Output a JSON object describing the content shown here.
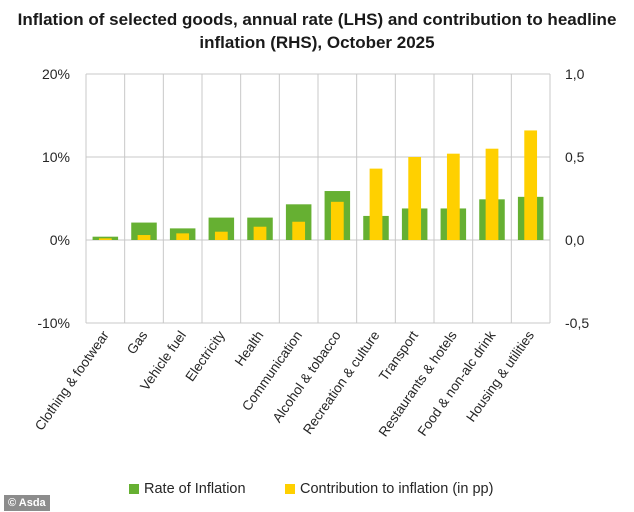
{
  "title": "Inflation of selected goods, annual rate (LHS) and contribution to headline inflation (RHS), October 2025",
  "watermark": "© Asda",
  "colors": {
    "rate": "#66b032",
    "contribution": "#ffd000",
    "grid": "#c8c8c8"
  },
  "chart_data": {
    "type": "bar",
    "title": "Inflation of selected goods, annual rate (LHS) and contribution to headline inflation (RHS), October 2025",
    "xlabel": "",
    "ylabel": "",
    "y_left": {
      "ylim": [
        -10,
        20
      ],
      "ticks": [
        20,
        10,
        0,
        -10
      ],
      "tick_labels": [
        "20%",
        "10%",
        "0%",
        "-10%"
      ]
    },
    "y_right": {
      "ylim": [
        -0.5,
        1.0
      ],
      "ticks": [
        1.0,
        0.5,
        0.0,
        -0.5
      ],
      "tick_labels": [
        "1,0",
        "0,5",
        "0,0",
        "-0,5"
      ]
    },
    "grid": true,
    "legend_position": "bottom",
    "categories": [
      "Clothing & footwear",
      "Gas",
      "Vehicle fuel",
      "Electricity",
      "Health",
      "Communication",
      "Alcohol & tobacco",
      "Recreation & culture",
      "Transport",
      "Restaurants & hotels",
      "Food & non-alc drink",
      "Housing & utilities"
    ],
    "series": [
      {
        "name": "Rate of Inflation",
        "axis": "left",
        "unit": "%",
        "values": [
          0.4,
          2.1,
          1.4,
          2.7,
          2.7,
          4.3,
          5.9,
          2.9,
          3.8,
          3.8,
          4.9,
          5.2
        ]
      },
      {
        "name": "Contribution to inflation (in pp)",
        "axis": "right",
        "unit": "pp",
        "values": [
          0.01,
          0.03,
          0.04,
          0.05,
          0.08,
          0.11,
          0.23,
          0.43,
          0.5,
          0.52,
          0.55,
          0.66
        ]
      }
    ]
  }
}
